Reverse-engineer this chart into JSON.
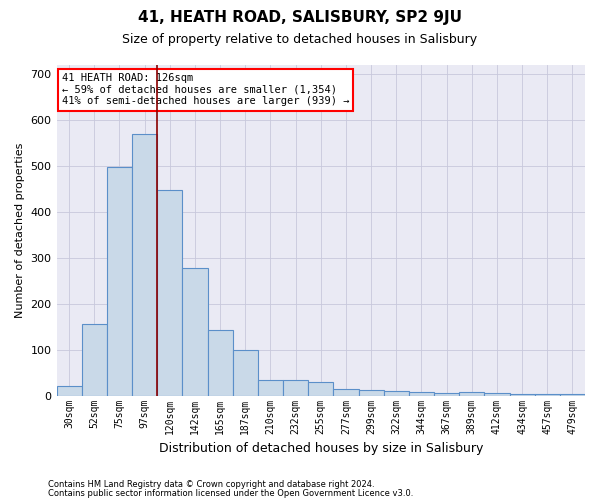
{
  "title": "41, HEATH ROAD, SALISBURY, SP2 9JU",
  "subtitle": "Size of property relative to detached houses in Salisbury",
  "xlabel": "Distribution of detached houses by size in Salisbury",
  "ylabel": "Number of detached properties",
  "footnote1": "Contains HM Land Registry data © Crown copyright and database right 2024.",
  "footnote2": "Contains public sector information licensed under the Open Government Licence v3.0.",
  "categories": [
    "30sqm",
    "52sqm",
    "75sqm",
    "97sqm",
    "120sqm",
    "142sqm",
    "165sqm",
    "187sqm",
    "210sqm",
    "232sqm",
    "255sqm",
    "277sqm",
    "299sqm",
    "322sqm",
    "344sqm",
    "367sqm",
    "389sqm",
    "412sqm",
    "434sqm",
    "457sqm",
    "479sqm"
  ],
  "values": [
    22,
    157,
    497,
    570,
    447,
    277,
    143,
    100,
    35,
    33,
    30,
    14,
    12,
    10,
    7,
    5,
    8,
    5,
    3,
    3,
    3
  ],
  "bar_color": "#c9d9e8",
  "bar_edge_color": "#5b8fc9",
  "grid_color": "#c8c8dc",
  "bg_color": "#eaeaf4",
  "annotation_line1": "41 HEATH ROAD: 126sqm",
  "annotation_line2": "← 59% of detached houses are smaller (1,354)",
  "annotation_line3": "41% of semi-detached houses are larger (939) →",
  "annotation_box_color": "white",
  "annotation_box_edge": "red",
  "ylim": [
    0,
    720
  ],
  "yticks": [
    0,
    100,
    200,
    300,
    400,
    500,
    600,
    700
  ],
  "red_line_bar_index": 3.5
}
